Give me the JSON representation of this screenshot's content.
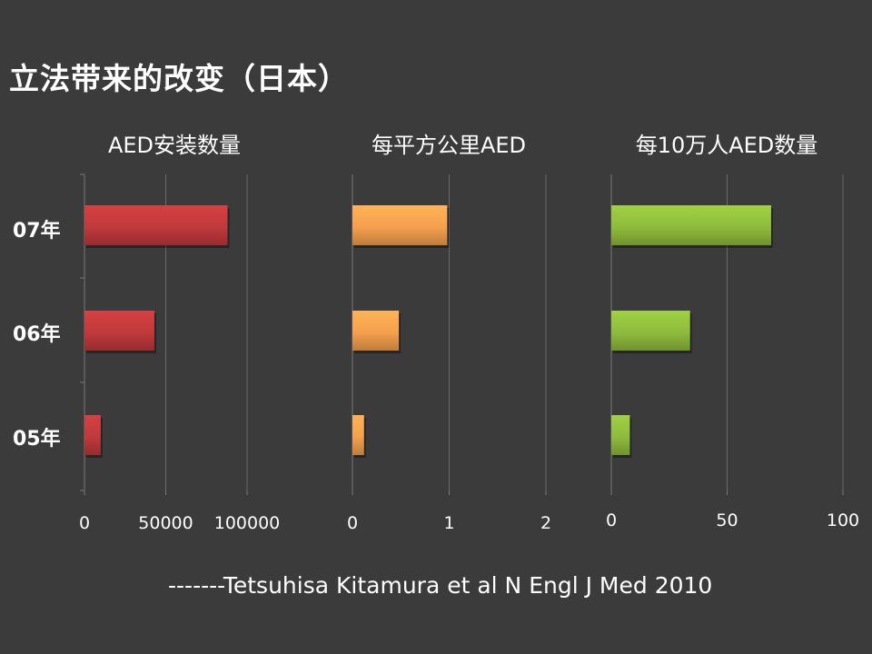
{
  "slide": {
    "title": "立法带来的改变（日本）",
    "citation": "-------Tetsuhisa Kitamura  et al N Engl J Med  2010"
  },
  "years": [
    "07年",
    "06年",
    "05年"
  ],
  "chart_data": [
    {
      "type": "bar",
      "orientation": "horizontal",
      "title": "AED安装数量",
      "categories": [
        "07年",
        "06年",
        "05年"
      ],
      "values": [
        88000,
        43000,
        10000
      ],
      "xlim": [
        0,
        100000
      ],
      "ticks": [
        "0",
        "50000",
        "100000"
      ],
      "tick_values": [
        0,
        50000,
        100000
      ],
      "color": "#c0393b",
      "grid": true
    },
    {
      "type": "bar",
      "orientation": "horizontal",
      "title": "每平方公里AED",
      "categories": [
        "07年",
        "06年",
        "05年"
      ],
      "values": [
        0.98,
        0.48,
        0.12
      ],
      "xlim": [
        0,
        2
      ],
      "ticks": [
        "0",
        "1",
        "2"
      ],
      "tick_values": [
        0,
        1,
        2
      ],
      "color": "#f4a04e",
      "grid": true
    },
    {
      "type": "bar",
      "orientation": "horizontal",
      "title": "每10万人AED数量",
      "categories": [
        "07年",
        "06年",
        "05年"
      ],
      "values": [
        69,
        34,
        8
      ],
      "xlim": [
        0,
        100
      ],
      "ticks": [
        "0",
        "50",
        "100"
      ],
      "tick_values": [
        0,
        50,
        100
      ],
      "color": "#8fbb3c",
      "grid": true
    }
  ]
}
